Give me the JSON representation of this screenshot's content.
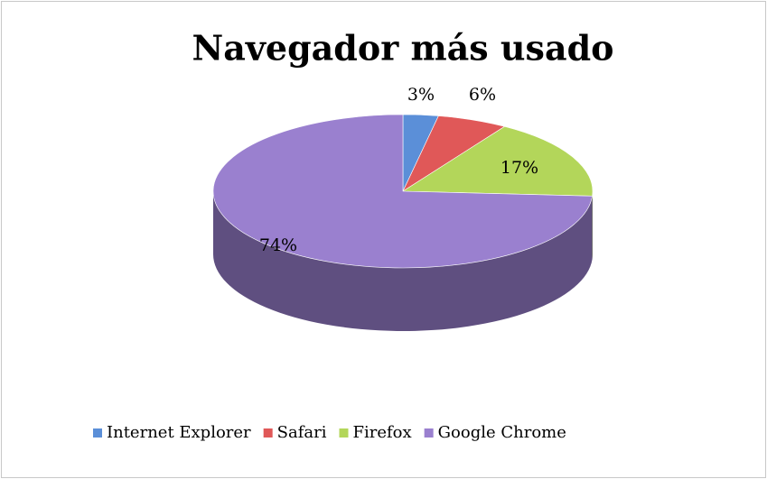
{
  "chart_data": {
    "type": "pie",
    "title": "Navegador más usado",
    "categories": [
      "Internet Explorer",
      "Safari",
      "Firefox",
      "Google Chrome"
    ],
    "values": [
      3,
      6,
      17,
      74
    ],
    "value_labels": [
      "3%",
      "6%",
      "17%",
      "74%"
    ],
    "colors": [
      "#5b8fd8",
      "#e05858",
      "#b3d65a",
      "#9a80cf"
    ],
    "legend": "bottom"
  }
}
